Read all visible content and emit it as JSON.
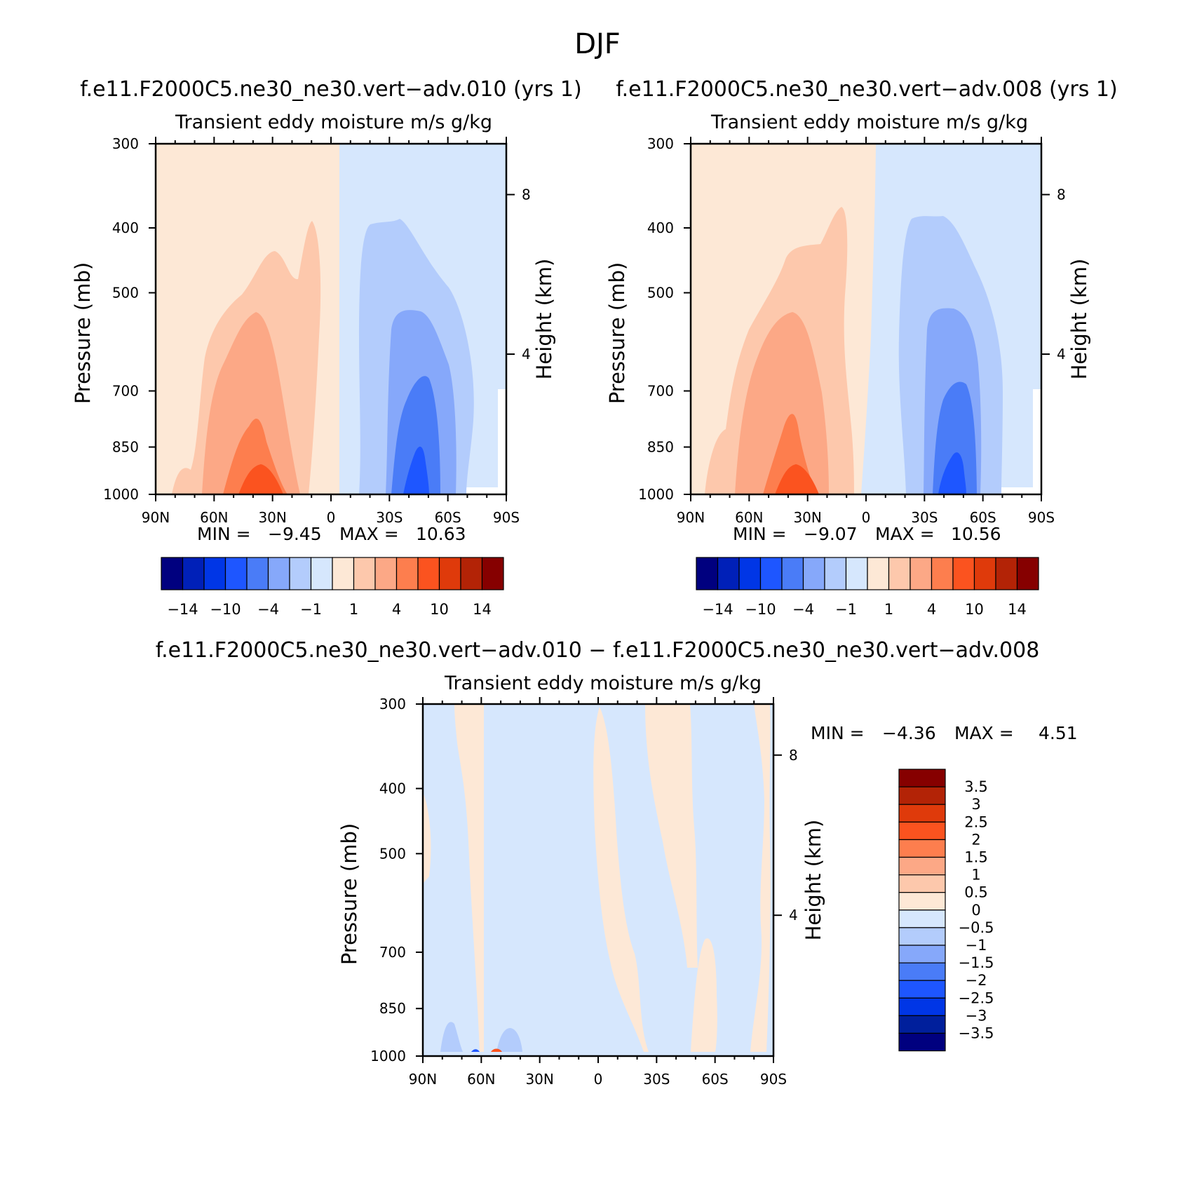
{
  "page_title": "DJF",
  "panels": [
    {
      "id": "case",
      "title": "f.e11.F2000C5.ne30_ne30.vert−adv.010 (yrs 1)",
      "subtitle": "Transient eddy moisture m/s g/kg",
      "min_label": "MIN =",
      "min_value": "−9.45",
      "max_label": "MAX =",
      "max_value": "10.63"
    },
    {
      "id": "control",
      "title": "f.e11.F2000C5.ne30_ne30.vert−adv.008 (yrs 1)",
      "subtitle": "Transient eddy moisture m/s g/kg",
      "min_label": "MIN =",
      "min_value": "−9.07",
      "max_label": "MAX =",
      "max_value": "10.56"
    },
    {
      "id": "difference",
      "title": "f.e11.F2000C5.ne30_ne30.vert−adv.010 − f.e11.F2000C5.ne30_ne30.vert−adv.008",
      "subtitle": "Transient eddy moisture m/s g/kg",
      "min_label": "MIN =",
      "min_value": "−4.36",
      "max_label": "MAX =",
      "max_value": "4.51"
    }
  ],
  "chart_data": [
    {
      "type": "contour",
      "title": "f.e11.F2000C5.ne30_ne30.vert−adv.010 (yrs 1)",
      "subtitle": "Transient eddy moisture m/s g/kg",
      "xlabel": "",
      "ylabel": "Pressure (mb)",
      "y2label": "Height (km)",
      "x_ticks": [
        "90N",
        "60N",
        "30N",
        "0",
        "30S",
        "60S",
        "90S"
      ],
      "y_ticks": [
        "300",
        "400",
        "500",
        "700",
        "850",
        "1000"
      ],
      "y2_ticks": [
        "8",
        "4"
      ],
      "min": -9.45,
      "max": 10.63,
      "colorbar_labels": [
        "−14",
        "−10",
        "−4",
        "−1",
        "1",
        "4",
        "10",
        "14"
      ]
    },
    {
      "type": "contour",
      "title": "f.e11.F2000C5.ne30_ne30.vert−adv.008 (yrs 1)",
      "subtitle": "Transient eddy moisture m/s g/kg",
      "xlabel": "",
      "ylabel": "Pressure (mb)",
      "y2label": "Height (km)",
      "x_ticks": [
        "90N",
        "60N",
        "30N",
        "0",
        "30S",
        "60S",
        "90S"
      ],
      "y_ticks": [
        "300",
        "400",
        "500",
        "700",
        "850",
        "1000"
      ],
      "y2_ticks": [
        "8",
        "4"
      ],
      "min": -9.07,
      "max": 10.56,
      "colorbar_labels": [
        "−14",
        "−10",
        "−4",
        "−1",
        "1",
        "4",
        "10",
        "14"
      ]
    },
    {
      "type": "contour",
      "title": "f.e11.F2000C5.ne30_ne30.vert−adv.010 − f.e11.F2000C5.ne30_ne30.vert−adv.008",
      "subtitle": "Transient eddy moisture m/s g/kg",
      "xlabel": "",
      "ylabel": "Pressure (mb)",
      "y2label": "Height (km)",
      "x_ticks": [
        "90N",
        "60N",
        "30N",
        "0",
        "30S",
        "60S",
        "90S"
      ],
      "y_ticks": [
        "300",
        "400",
        "500",
        "700",
        "850",
        "1000"
      ],
      "y2_ticks": [
        "8",
        "4"
      ],
      "min": -4.36,
      "max": 4.51,
      "colorbar_labels": [
        "3.5",
        "3",
        "2.5",
        "2",
        "1.5",
        "1",
        "0.5",
        "0",
        "−0.5",
        "−1",
        "−1.5",
        "−2",
        "−2.5",
        "−3",
        "−3.5"
      ]
    }
  ],
  "palette": [
    "#00007f",
    "#0020b8",
    "#0036e6",
    "#1e56ff",
    "#4a7cf7",
    "#86a8fa",
    "#b3ccfc",
    "#d6e7fd",
    "#fde8d6",
    "#fdc8ac",
    "#fca886",
    "#fd7e4e",
    "#fb531f",
    "#df3a0b",
    "#b32306",
    "#860000"
  ],
  "diff_palette": [
    "#00007f",
    "#001f9c",
    "#0036e6",
    "#1e56ff",
    "#4a7cf7",
    "#86a8fa",
    "#b3ccfc",
    "#d6e7fd",
    "#fde8d6",
    "#fdc8ac",
    "#fca886",
    "#fd7e4e",
    "#fb531f",
    "#df3a0b",
    "#b32306",
    "#860000"
  ]
}
